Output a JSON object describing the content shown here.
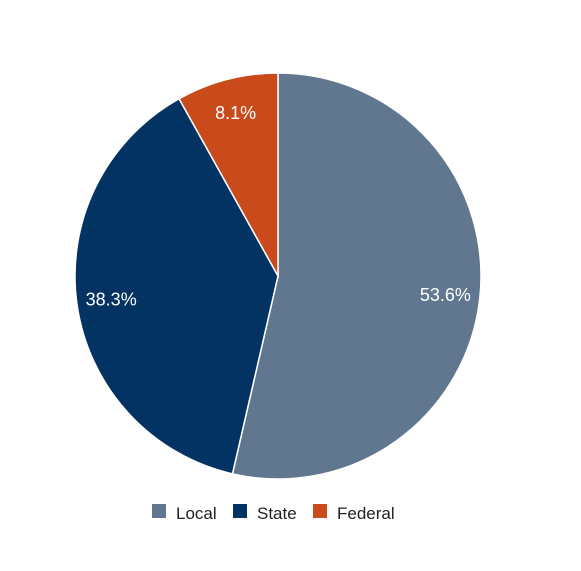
{
  "chart_data": {
    "type": "pie",
    "categories": [
      "Local",
      "State",
      "Federal"
    ],
    "values": [
      53.6,
      38.3,
      8.1
    ],
    "value_labels": [
      "53.6%",
      "38.3%",
      "8.1%"
    ],
    "colors": [
      "#60778f",
      "#033363",
      "#c94a1b"
    ],
    "start_angle_deg": 0,
    "direction": "clockwise",
    "legend": {
      "position": "bottom",
      "items": [
        {
          "label": "Local",
          "color": "#60778f"
        },
        {
          "label": "State",
          "color": "#033363"
        },
        {
          "label": "Federal",
          "color": "#c94a1b"
        }
      ]
    }
  }
}
